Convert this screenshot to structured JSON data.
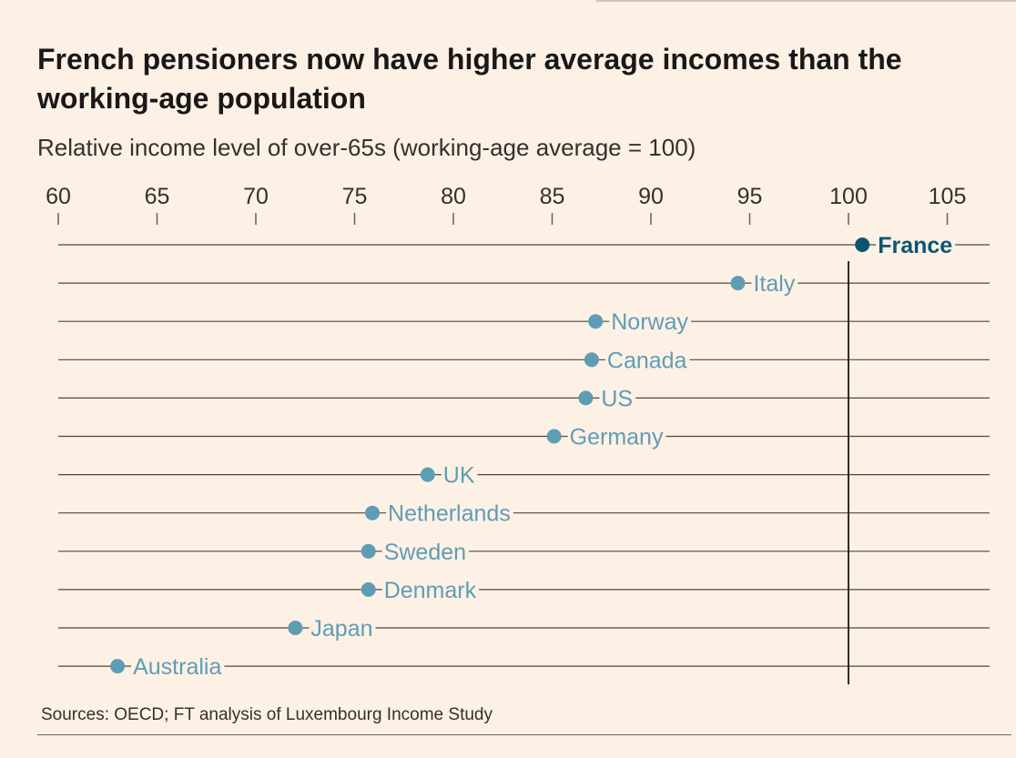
{
  "title": "French pensioners now have higher average incomes than the working-age population",
  "subtitle": "Relative income level of over-65s (working-age average = 100)",
  "source": "Sources: OECD; FT analysis of Luxembourg Income Study",
  "chart_data": {
    "type": "scatter",
    "title": "French pensioners now have higher average incomes than the working-age population",
    "subtitle": "Relative income level of over-65s (working-age average = 100)",
    "xlabel": "",
    "ylabel": "",
    "xlim": [
      60,
      107
    ],
    "xticks": [
      60,
      65,
      70,
      75,
      80,
      85,
      90,
      95,
      100,
      105
    ],
    "reference_line": 100,
    "categories": [
      "France",
      "Italy",
      "Norway",
      "Canada",
      "US",
      "Germany",
      "UK",
      "Netherlands",
      "Sweden",
      "Denmark",
      "Japan",
      "Australia"
    ],
    "values": [
      100.7,
      94.4,
      87.2,
      87.0,
      86.7,
      85.1,
      78.7,
      75.9,
      75.7,
      75.7,
      72.0,
      63.0
    ],
    "highlight": "France",
    "colors": {
      "highlight": "#0d5671",
      "default": "#5f9db5",
      "line": "#4d4845",
      "ref": "#1a1817"
    }
  }
}
